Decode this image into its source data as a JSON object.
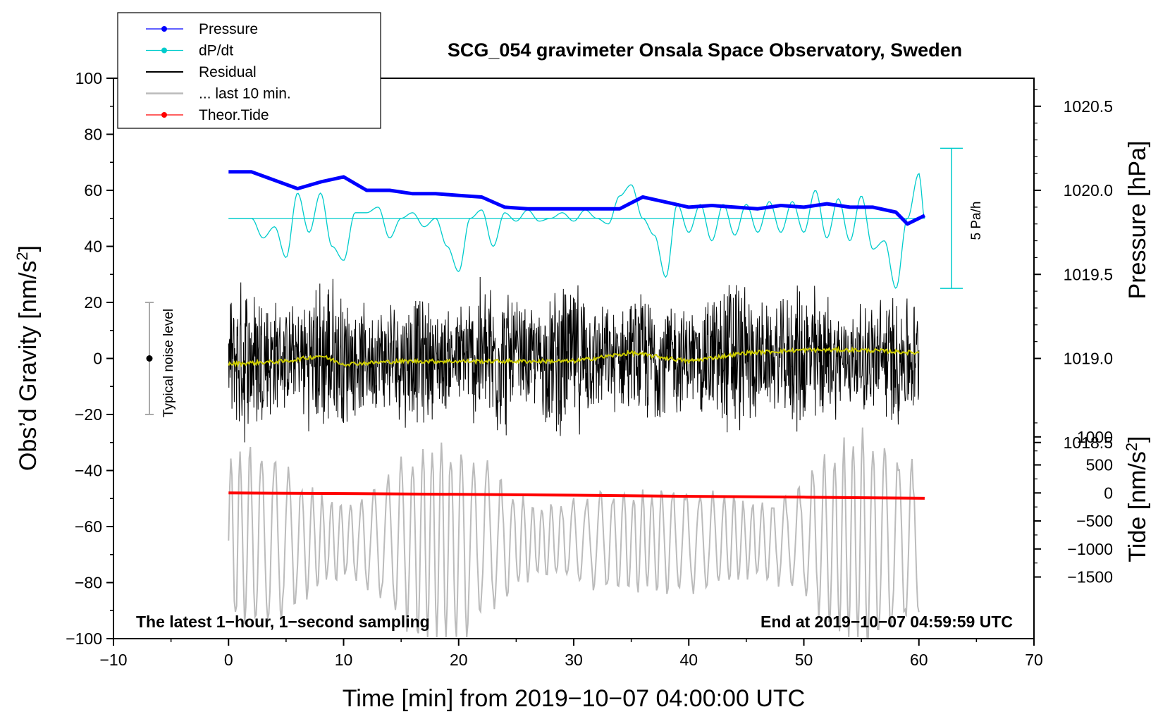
{
  "chart_data": {
    "type": "line",
    "title": "SCG_054 gravimeter Onsala Space Observatory, Sweden",
    "xlabel": "Time [min] from 2019−10−07 04:00:00 UTC",
    "ylabel_prefix": "Obs’d Gravity [nm/s",
    "ylabel_sup": "2",
    "ylabel_suffix": "]",
    "xlim": [
      -10,
      70
    ],
    "ylim": [
      -100,
      100
    ],
    "x_ticks": [
      {
        "value": -10,
        "label": "−10"
      },
      {
        "value": 0,
        "label": "0"
      },
      {
        "value": 10,
        "label": "10"
      },
      {
        "value": 20,
        "label": "20"
      },
      {
        "value": 30,
        "label": "30"
      },
      {
        "value": 40,
        "label": "40"
      },
      {
        "value": 50,
        "label": "50"
      },
      {
        "value": 60,
        "label": "60"
      },
      {
        "value": 70,
        "label": "70"
      }
    ],
    "y_ticks": [
      {
        "value": 100,
        "label": "100"
      },
      {
        "value": 80,
        "label": "80"
      },
      {
        "value": 60,
        "label": "60"
      },
      {
        "value": 40,
        "label": "40"
      },
      {
        "value": 20,
        "label": "20"
      },
      {
        "value": 0,
        "label": "0"
      },
      {
        "value": -20,
        "label": "−20"
      },
      {
        "value": -40,
        "label": "−40"
      },
      {
        "value": -60,
        "label": "−60"
      },
      {
        "value": -80,
        "label": "−80"
      },
      {
        "value": -100,
        "label": "−100"
      }
    ],
    "pressure_axis": {
      "label": "Pressure [hPa]",
      "ticks": [
        {
          "value": 1020.5,
          "label": "1020.5"
        },
        {
          "value": 1020.0,
          "label": "1020.0"
        },
        {
          "value": 1019.5,
          "label": "1019.5"
        },
        {
          "value": 1019.0,
          "label": "1019.0"
        },
        {
          "value": 1018.5,
          "label": "1018.5"
        }
      ],
      "gravity_per_hpa": 60,
      "hpa_at_gravity_zero": 1019.0
    },
    "tide_axis": {
      "label_prefix": "Tide [nm/s",
      "label_sup": "2",
      "label_suffix": "]",
      "ticks": [
        {
          "value": 1000,
          "label": "1000"
        },
        {
          "value": 500,
          "label": "500"
        },
        {
          "value": 0,
          "label": "0"
        },
        {
          "value": -500,
          "label": "−500"
        },
        {
          "value": -1000,
          "label": "−1000"
        },
        {
          "value": -1500,
          "label": "−1500"
        }
      ],
      "gravity_per_unit": 0.02,
      "unit_at_gravity_zero": 2400
    },
    "series": [
      {
        "name": "Pressure",
        "color": "#0000ff",
        "unit": "hPa",
        "x": [
          0,
          2,
          4,
          6,
          8,
          10,
          12,
          14,
          16,
          18,
          20,
          22,
          24,
          26,
          28,
          30,
          32,
          34,
          36,
          38,
          40,
          42,
          44,
          46,
          48,
          50,
          52,
          54,
          56,
          58,
          59,
          60.5
        ],
        "values": [
          1020.11,
          1020.11,
          1020.06,
          1020.01,
          1020.05,
          1020.08,
          1020.0,
          1020.0,
          1019.98,
          1019.98,
          1019.97,
          1019.96,
          1019.9,
          1019.89,
          1019.89,
          1019.89,
          1019.89,
          1019.89,
          1019.96,
          1019.93,
          1019.9,
          1019.91,
          1019.9,
          1019.89,
          1019.91,
          1019.9,
          1019.92,
          1019.9,
          1019.9,
          1019.87,
          1019.8,
          1019.85
        ]
      },
      {
        "name": "dP/dt",
        "color": "#00cccc",
        "center_gravity": 50,
        "x": [
          0,
          1,
          2,
          3,
          4,
          5,
          6,
          7,
          8,
          9,
          10,
          11,
          12,
          13,
          14,
          15,
          16,
          17,
          18,
          19,
          20,
          21,
          22,
          23,
          24,
          25,
          26,
          27,
          28,
          29,
          30,
          31,
          32,
          33,
          34,
          35,
          36,
          37,
          38,
          39,
          40,
          41,
          42,
          43,
          44,
          45,
          46,
          47,
          48,
          49,
          50,
          51,
          52,
          53,
          54,
          55,
          56,
          57,
          58,
          59,
          60,
          60.5
        ],
        "values": [
          50,
          50,
          50,
          43,
          47,
          36,
          59,
          45,
          59,
          40,
          35,
          52,
          52,
          54,
          43,
          50,
          52,
          47,
          50,
          40,
          31,
          50,
          53,
          40,
          52,
          49,
          53,
          49,
          50,
          52,
          49,
          53,
          50,
          48,
          58,
          62,
          50,
          44,
          29,
          55,
          45,
          55,
          42,
          55,
          44,
          55,
          45,
          56,
          45,
          56,
          45,
          60,
          43,
          57,
          42,
          58,
          39,
          42,
          25,
          50,
          66,
          50
        ]
      },
      {
        "name": "Residual",
        "color": "#000000",
        "x": [
          0,
          60
        ],
        "envelope": [
          20,
          35
        ]
      },
      {
        "name": "... last 10 min.",
        "color": "#bbbbbb",
        "x": [
          0,
          60
        ],
        "center_gravity": -65,
        "envelope": [
          15,
          45
        ]
      },
      {
        "name": "Theor.Tide",
        "color": "#ff0000",
        "unit": "nm/s2",
        "x": [
          0,
          10,
          20,
          30,
          40,
          50,
          60.5
        ],
        "values": [
          0,
          -10,
          -25,
          -40,
          -60,
          -75,
          -95
        ]
      },
      {
        "name": "smoothed residual",
        "color": "#cccc00",
        "x": [
          0,
          5,
          8,
          10,
          15,
          20,
          25,
          30,
          35,
          40,
          45,
          50,
          55,
          60
        ],
        "values": [
          -2,
          -1,
          1,
          -2,
          -1,
          -1,
          -1,
          -1,
          2,
          -1,
          2,
          3,
          3,
          2
        ]
      }
    ],
    "legend": [
      {
        "label": "Pressure",
        "color": "#0000ff",
        "marker": true
      },
      {
        "label": "dP/dt",
        "color": "#00cccc",
        "marker": true
      },
      {
        "label": "Residual",
        "color": "#000000",
        "marker": false
      },
      {
        "label": "... last 10 min.",
        "color": "#bbbbbb",
        "marker": false
      },
      {
        "label": "Theor.Tide",
        "color": "#ff0000",
        "marker": true
      }
    ],
    "legend_position": "top-left",
    "annotations": {
      "noise_label": "Typical noise level",
      "noise_range": [
        -20,
        20
      ],
      "dpdt_scale_label": "5 Pa/h",
      "dpdt_scale_range": [
        25,
        75
      ],
      "bottom_left": "The latest 1−hour, 1−second sampling",
      "bottom_right": "End at 2019−10−07 04:59:59 UTC"
    }
  }
}
